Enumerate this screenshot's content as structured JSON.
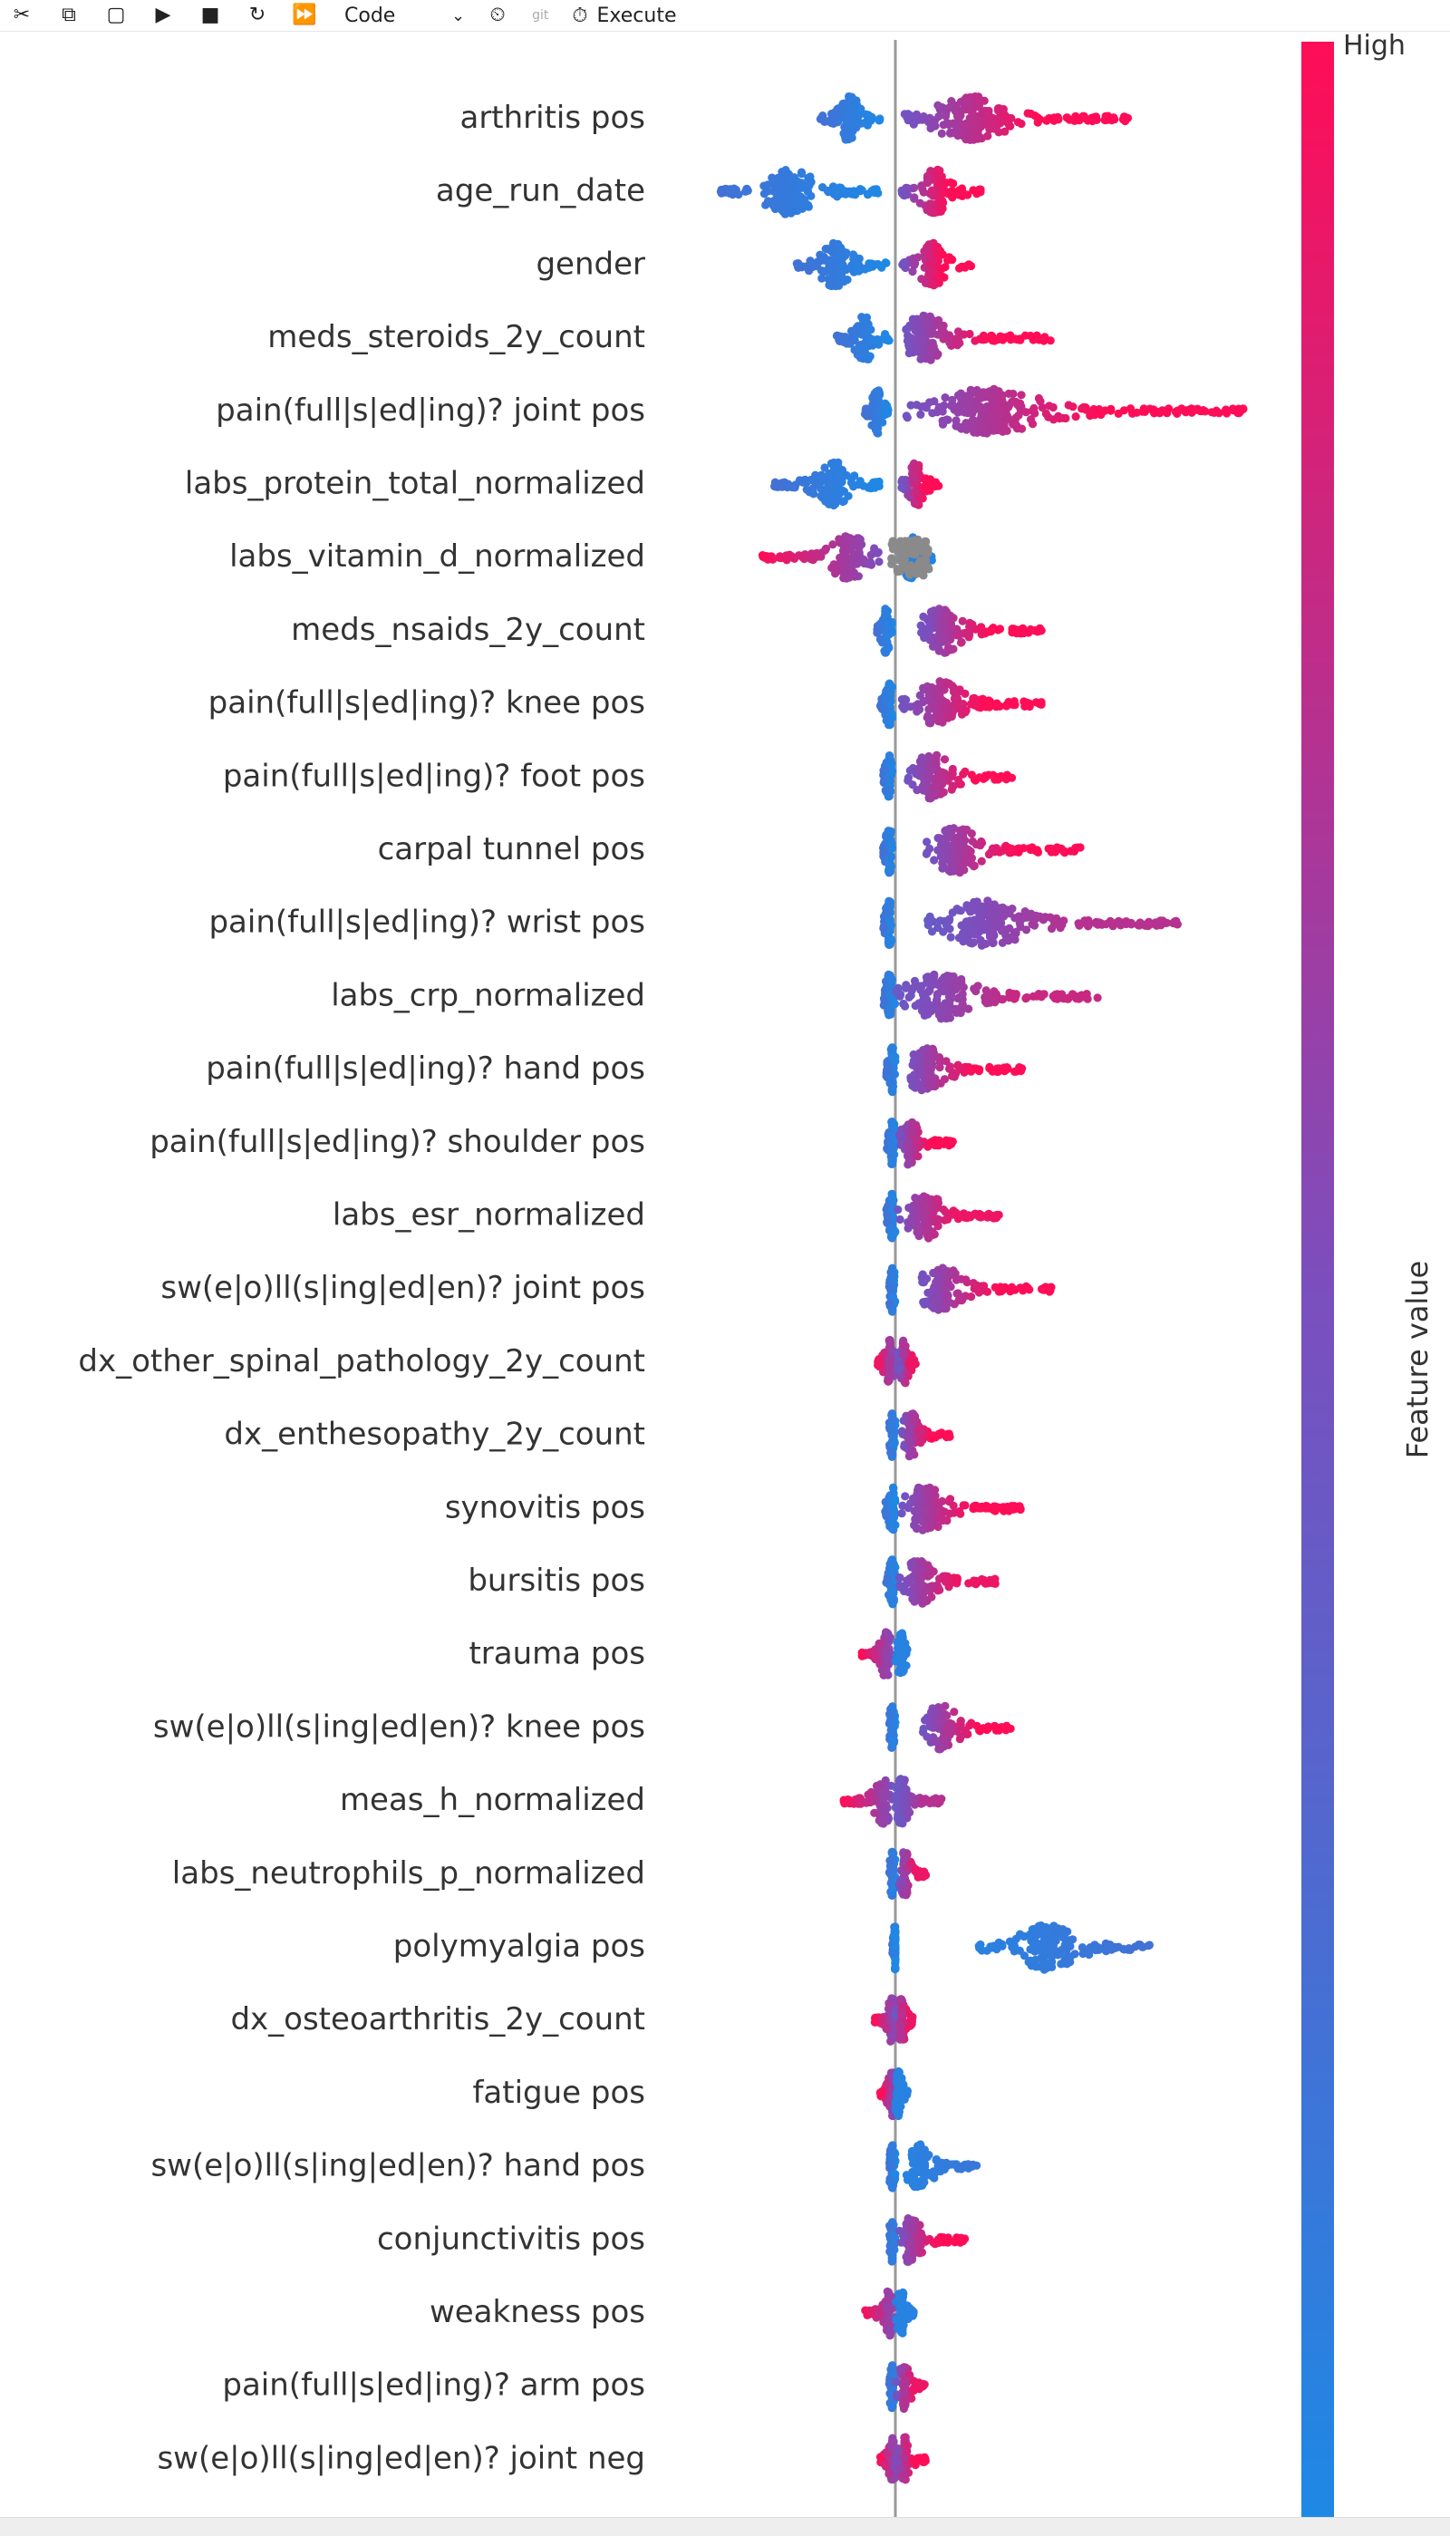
{
  "toolbar": {
    "buttons": [
      {
        "name": "cut-icon",
        "glyph": "✂"
      },
      {
        "name": "copy-icon",
        "glyph": "⧉"
      },
      {
        "name": "paste-icon",
        "glyph": "▢"
      },
      {
        "name": "run-icon",
        "glyph": "▶"
      },
      {
        "name": "stop-icon",
        "glyph": "■"
      },
      {
        "name": "restart-icon",
        "glyph": "↻"
      },
      {
        "name": "run-all-icon",
        "glyph": "⏩"
      }
    ],
    "cell_type": "Code",
    "time_icon": "⏲",
    "git_label": "git",
    "execute_label": "Execute"
  },
  "chart_data": {
    "type": "scatter",
    "subtype": "shap-beeswarm",
    "colorbar": {
      "high_label": "High",
      "title": "Feature value",
      "colors": {
        "low": "#1e88e5",
        "mid": "#7c4ebd",
        "high": "#ff0d57"
      }
    },
    "gray_color": "#8a8a8a",
    "zero_line": true,
    "features": [
      {
        "name": "arthritis pos",
        "neg": [
          -0.25,
          -0.05,
          0
        ],
        "pos": [
          0.03,
          0.78,
          1
        ],
        "peak_neg": -0.15,
        "peak_pos": 0.25
      },
      {
        "name": "age_run_date",
        "neg": [
          -0.58,
          -0.04,
          0
        ],
        "pos": [
          0.02,
          0.28,
          1
        ],
        "peak_neg": -0.35,
        "peak_pos": 0.13
      },
      {
        "name": "gender",
        "neg": [
          -0.33,
          -0.03,
          0
        ],
        "pos": [
          0.02,
          0.25,
          1
        ],
        "peak_neg": -0.2,
        "peak_pos": 0.12
      },
      {
        "name": "meds_steroids_2y_count",
        "neg": [
          -0.2,
          -0.02,
          0
        ],
        "pos": [
          0.03,
          0.51,
          1
        ],
        "peak_neg": -0.1,
        "peak_pos": 0.1
      },
      {
        "name": "pain(full|s|ed|ing)? joint pos",
        "neg": [
          -0.1,
          -0.02,
          0
        ],
        "pos": [
          0.03,
          1.15,
          1
        ],
        "peak_neg": -0.06,
        "peak_pos": 0.3
      },
      {
        "name": "labs_protein_total_normalized",
        "neg": [
          -0.4,
          -0.05,
          0
        ],
        "pos": [
          0.02,
          0.15,
          1
        ],
        "peak_neg": -0.2,
        "peak_pos": 0.07
      },
      {
        "name": "labs_vitamin_d_normalized",
        "neg": [
          -0.44,
          -0.05,
          1
        ],
        "pos": [
          0.01,
          0.12,
          0
        ],
        "gray": [
          -0.02,
          0.11
        ],
        "peak_neg": -0.15,
        "peak_pos": 0.05
      },
      {
        "name": "meds_nsaids_2y_count",
        "neg": [
          -0.06,
          -0.01,
          0
        ],
        "pos": [
          0.08,
          0.48,
          1
        ],
        "peak_neg": -0.03,
        "peak_pos": 0.15
      },
      {
        "name": "pain(full|s|ed|ing)? knee pos",
        "neg": [
          -0.05,
          -0.01,
          0
        ],
        "pos": [
          0.02,
          0.49,
          1
        ],
        "peak_neg": -0.02,
        "peak_pos": 0.15
      },
      {
        "name": "pain(full|s|ed|ing)? foot pos",
        "neg": [
          -0.04,
          -0.01,
          0
        ],
        "pos": [
          0.04,
          0.42,
          1
        ],
        "peak_neg": -0.02,
        "peak_pos": 0.12
      },
      {
        "name": "carpal tunnel pos",
        "neg": [
          -0.04,
          -0.01,
          0
        ],
        "pos": [
          0.1,
          0.62,
          1
        ],
        "peak_neg": -0.02,
        "peak_pos": 0.2
      },
      {
        "name": "pain(full|s|ed|ing)? wrist pos",
        "neg": [
          -0.04,
          -0.01,
          0
        ],
        "pos": [
          0.1,
          0.93,
          0.6
        ],
        "peak_neg": -0.02,
        "peak_pos": 0.3
      },
      {
        "name": "labs_crp_normalized",
        "neg": [
          -0.04,
          0,
          0
        ],
        "pos": [
          0,
          0.67,
          0.7
        ],
        "peak_neg": -0.02,
        "peak_pos": 0.15
      },
      {
        "name": "pain(full|s|ed|ing)? hand pos",
        "neg": [
          -0.03,
          0,
          0
        ],
        "pos": [
          0.04,
          0.42,
          1
        ],
        "peak_neg": -0.01,
        "peak_pos": 0.1
      },
      {
        "name": "pain(full|s|ed|ing)? shoulder pos",
        "neg": [
          -0.03,
          0,
          0
        ],
        "pos": [
          0.01,
          0.19,
          1
        ],
        "peak_neg": -0.01,
        "peak_pos": 0.05
      },
      {
        "name": "labs_esr_normalized",
        "neg": [
          -0.03,
          0,
          0
        ],
        "pos": [
          0,
          0.34,
          0.9
        ],
        "peak_neg": -0.01,
        "peak_pos": 0.1
      },
      {
        "name": "sw(e|o)ll(s|ing|ed|en)? joint pos",
        "neg": [
          -0.02,
          0,
          0
        ],
        "pos": [
          0.08,
          0.53,
          1
        ],
        "peak_neg": -0.01,
        "peak_pos": 0.15
      },
      {
        "name": "dx_other_spinal_pathology_2y_count",
        "neg": [
          -0.06,
          0,
          0.7
        ],
        "pos": [
          0.01,
          0.07,
          0.9
        ],
        "peak_neg": -0.02,
        "peak_pos": 0.03
      },
      {
        "name": "dx_enthesopathy_2y_count",
        "neg": [
          -0.02,
          0,
          0
        ],
        "pos": [
          0.02,
          0.18,
          1
        ],
        "peak_neg": -0.01,
        "peak_pos": 0.05
      },
      {
        "name": "synovitis pos",
        "neg": [
          -0.04,
          0,
          0
        ],
        "pos": [
          0.02,
          0.42,
          1
        ],
        "peak_neg": -0.01,
        "peak_pos": 0.1
      },
      {
        "name": "bursitis pos",
        "neg": [
          -0.03,
          0,
          0
        ],
        "pos": [
          0.01,
          0.33,
          0.9
        ],
        "peak_neg": -0.01,
        "peak_pos": 0.08
      },
      {
        "name": "trauma pos",
        "neg": [
          -0.11,
          -0.01,
          0.8
        ],
        "pos": [
          0,
          0.04,
          0
        ],
        "peak_neg": -0.03,
        "peak_pos": 0.02
      },
      {
        "name": "sw(e|o)ll(s|ing|ed|en)? knee pos",
        "neg": [
          -0.02,
          0,
          0
        ],
        "pos": [
          0.09,
          0.41,
          1
        ],
        "peak_neg": -0.01,
        "peak_pos": 0.15
      },
      {
        "name": "meas_h_normalized",
        "neg": [
          -0.17,
          -0.01,
          0.6
        ],
        "pos": [
          0,
          0.16,
          0.6
        ],
        "peak_neg": -0.04,
        "peak_pos": 0.02
      },
      {
        "name": "labs_neutrophils_p_normalized",
        "neg": [
          -0.02,
          0,
          0
        ],
        "pos": [
          0.01,
          0.1,
          0.9
        ],
        "peak_neg": -0.01,
        "peak_pos": 0.03
      },
      {
        "name": "polymyalgia pos",
        "neg": [
          -0.01,
          0,
          0
        ],
        "pos": [
          0.27,
          0.84,
          0.15
        ],
        "peak_neg": 0,
        "peak_pos": 0.5
      },
      {
        "name": "dx_osteoarthritis_2y_count",
        "neg": [
          -0.07,
          0,
          1
        ],
        "pos": [
          0,
          0.06,
          0.9
        ],
        "peak_neg": -0.01,
        "peak_pos": 0.02
      },
      {
        "name": "fatigue pos",
        "neg": [
          -0.05,
          0,
          1
        ],
        "pos": [
          0,
          0.04,
          0
        ],
        "peak_neg": -0.01,
        "peak_pos": 0.01
      },
      {
        "name": "sw(e|o)ll(s|ing|ed|en)? hand pos",
        "neg": [
          -0.02,
          0,
          0
        ],
        "pos": [
          0.03,
          0.27,
          0.1
        ],
        "peak_neg": -0.01,
        "peak_pos": 0.08
      },
      {
        "name": "conjunctivitis pos",
        "neg": [
          -0.02,
          0,
          0
        ],
        "pos": [
          0.01,
          0.23,
          1
        ],
        "peak_neg": -0.01,
        "peak_pos": 0.05
      },
      {
        "name": "weakness pos",
        "neg": [
          -0.1,
          0,
          1
        ],
        "pos": [
          0,
          0.06,
          0
        ],
        "peak_neg": -0.02,
        "peak_pos": 0.02
      },
      {
        "name": "pain(full|s|ed|ing)? arm pos",
        "neg": [
          -0.02,
          0,
          0
        ],
        "pos": [
          0,
          0.1,
          0.9
        ],
        "peak_neg": -0.01,
        "peak_pos": 0.03
      },
      {
        "name": "sw(e|o)ll(s|ing|ed|en)? joint neg",
        "neg": [
          -0.05,
          0,
          0.7
        ],
        "pos": [
          0,
          0.1,
          1
        ],
        "peak_neg": -0.01,
        "peak_pos": 0.03
      }
    ]
  }
}
